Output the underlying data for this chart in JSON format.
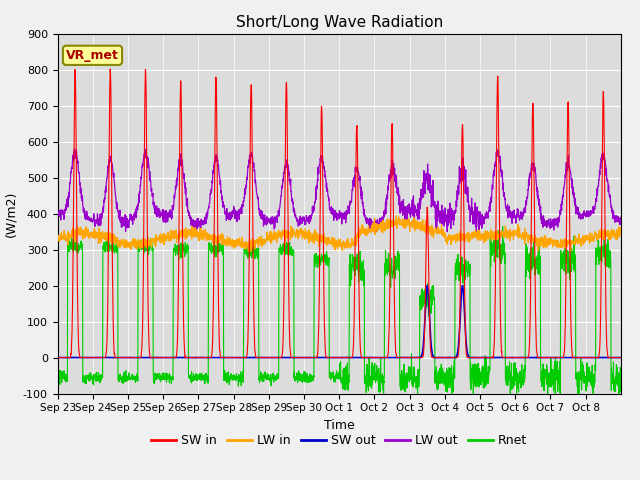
{
  "title": "Short/Long Wave Radiation",
  "ylabel": "(W/m2)",
  "xlabel": "Time",
  "ylim": [
    -100,
    900
  ],
  "yticks": [
    -100,
    0,
    100,
    200,
    300,
    400,
    500,
    600,
    700,
    800,
    900
  ],
  "xtick_labels": [
    "Sep 23",
    "Sep 24",
    "Sep 25",
    "Sep 26",
    "Sep 27",
    "Sep 28",
    "Sep 29",
    "Sep 30",
    "Oct 1",
    "Oct 2",
    "Oct 3",
    "Oct 4",
    "Oct 5",
    "Oct 6",
    "Oct 7",
    "Oct 8"
  ],
  "colors": {
    "SW_in": "#ff0000",
    "LW_in": "#ffa500",
    "SW_out": "#0000cc",
    "LW_out": "#9900cc",
    "Rnet": "#00cc00"
  },
  "legend_labels": [
    "SW in",
    "LW in",
    "SW out",
    "LW out",
    "Rnet"
  ],
  "background_color": "#dcdcdc",
  "fig_color": "#f0f0f0",
  "annotation_text": "VR_met",
  "annotation_bg": "#ffff99",
  "annotation_border": "#888800",
  "n_days": 16,
  "points_per_day": 144,
  "sw_in_peaks": [
    800,
    800,
    800,
    770,
    780,
    760,
    770,
    700,
    650,
    650,
    420,
    650,
    780,
    710,
    710,
    740
  ],
  "lw_in_base": 330,
  "lw_out_base": 385,
  "rnet_day": 310,
  "rnet_night": -55
}
